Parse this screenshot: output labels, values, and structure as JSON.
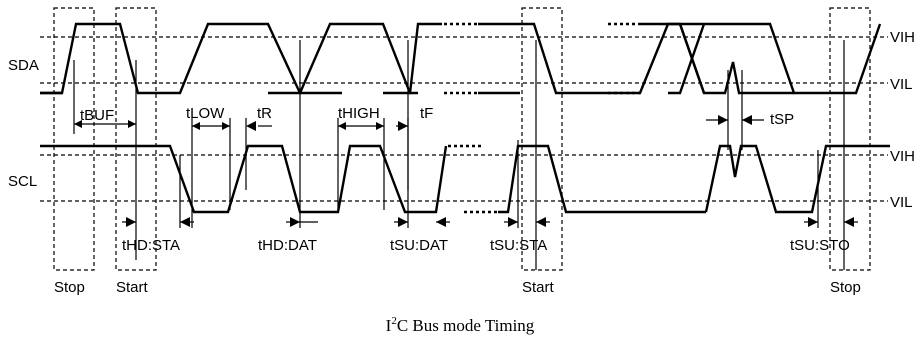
{
  "signals": {
    "sda": "SDA",
    "scl": "SCL"
  },
  "levels": {
    "vih_top": "VIH",
    "vil_top": "VIL",
    "vih_bottom": "VIH",
    "vil_bottom": "VIL"
  },
  "timing": {
    "t_buf": "tBUF",
    "t_low": "tLOW",
    "t_r": "tR",
    "t_high": "tHIGH",
    "t_f": "tF",
    "t_sp": "tSP",
    "t_hd_sta": "tHD:STA",
    "t_hd_dat": "tHD:DAT",
    "t_su_dat": "tSU:DAT",
    "t_su_sta": "tSU:STA",
    "t_su_sto": "tSU:STO"
  },
  "conditions": {
    "stop_left": "Stop",
    "start_left": "Start",
    "start_mid": "Start",
    "stop_right": "Stop"
  },
  "caption": {
    "prefix": "I",
    "superscript": "2",
    "rest": "C Bus mode Timing"
  }
}
